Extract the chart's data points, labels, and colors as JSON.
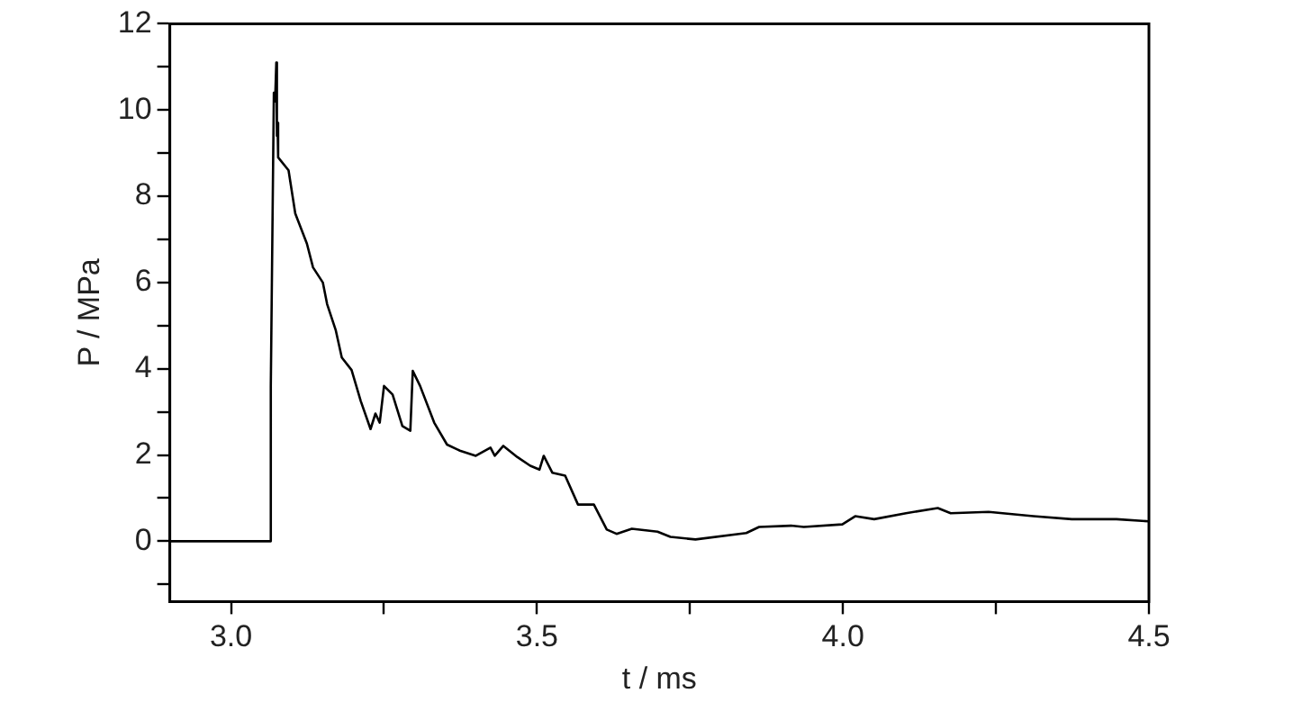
{
  "chart_data": {
    "type": "line",
    "xlabel": "t / ms",
    "ylabel": "P / MPa",
    "xlim": [
      2.9,
      4.5
    ],
    "xticks": [
      {
        "value": 3,
        "label": "3.0"
      },
      {
        "value": 3.25,
        "label": null
      },
      3.5,
      {
        "value": 3.75,
        "label": null
      },
      {
        "value": 4,
        "label": "4.0"
      },
      {
        "value": 4.25,
        "label": null
      },
      4.5
    ],
    "ylim": [
      -1.4,
      12
    ],
    "yticks": [
      {
        "value": -1,
        "label": null
      },
      0,
      {
        "value": 1,
        "label": null
      },
      2,
      {
        "value": 3,
        "label": null
      },
      4,
      {
        "value": 5,
        "label": null
      },
      6,
      {
        "value": 7,
        "label": null
      },
      8,
      {
        "value": 9,
        "label": null
      },
      10,
      {
        "value": 11,
        "label": null
      },
      12
    ],
    "marker": "none",
    "line_style": "solid",
    "series": [
      {
        "color": "#000000",
        "x": [
          2.9,
          3.065,
          3.065,
          3.07,
          3.072,
          3.074,
          3.075,
          3.076,
          3.077,
          3.094,
          3.105,
          3.124,
          3.134,
          3.15,
          3.157,
          3.171,
          3.181,
          3.197,
          3.212,
          3.228,
          3.236,
          3.243,
          3.25,
          3.264,
          3.28,
          3.293,
          3.297,
          3.309,
          3.332,
          3.353,
          3.374,
          3.4,
          3.424,
          3.431,
          3.445,
          3.468,
          3.489,
          3.504,
          3.511,
          3.525,
          3.546,
          3.567,
          3.593,
          3.614,
          3.63,
          3.655,
          3.697,
          3.718,
          3.759,
          3.842,
          3.863,
          3.915,
          3.936,
          3.999,
          4.02,
          4.051,
          4.103,
          4.155,
          4.176,
          4.238,
          4.311,
          4.374,
          4.447,
          4.5
        ],
        "values": [
          0,
          0,
          3.6,
          10.4,
          10.2,
          11.1,
          9.4,
          9.7,
          8.9,
          8.6,
          7.6,
          6.9,
          6.35,
          6.0,
          5.5,
          4.9,
          4.26,
          3.97,
          3.25,
          2.6,
          2.96,
          2.75,
          3.6,
          3.4,
          2.67,
          2.56,
          3.95,
          3.6,
          2.75,
          2.24,
          2.1,
          1.98,
          2.17,
          1.98,
          2.21,
          1.95,
          1.75,
          1.66,
          1.98,
          1.59,
          1.52,
          0.85,
          0.85,
          0.27,
          0.17,
          0.29,
          0.22,
          0.1,
          0.04,
          0.19,
          0.33,
          0.36,
          0.33,
          0.39,
          0.58,
          0.51,
          0.65,
          0.77,
          0.65,
          0.68,
          0.58,
          0.51,
          0.51,
          0.46
        ]
      }
    ]
  }
}
